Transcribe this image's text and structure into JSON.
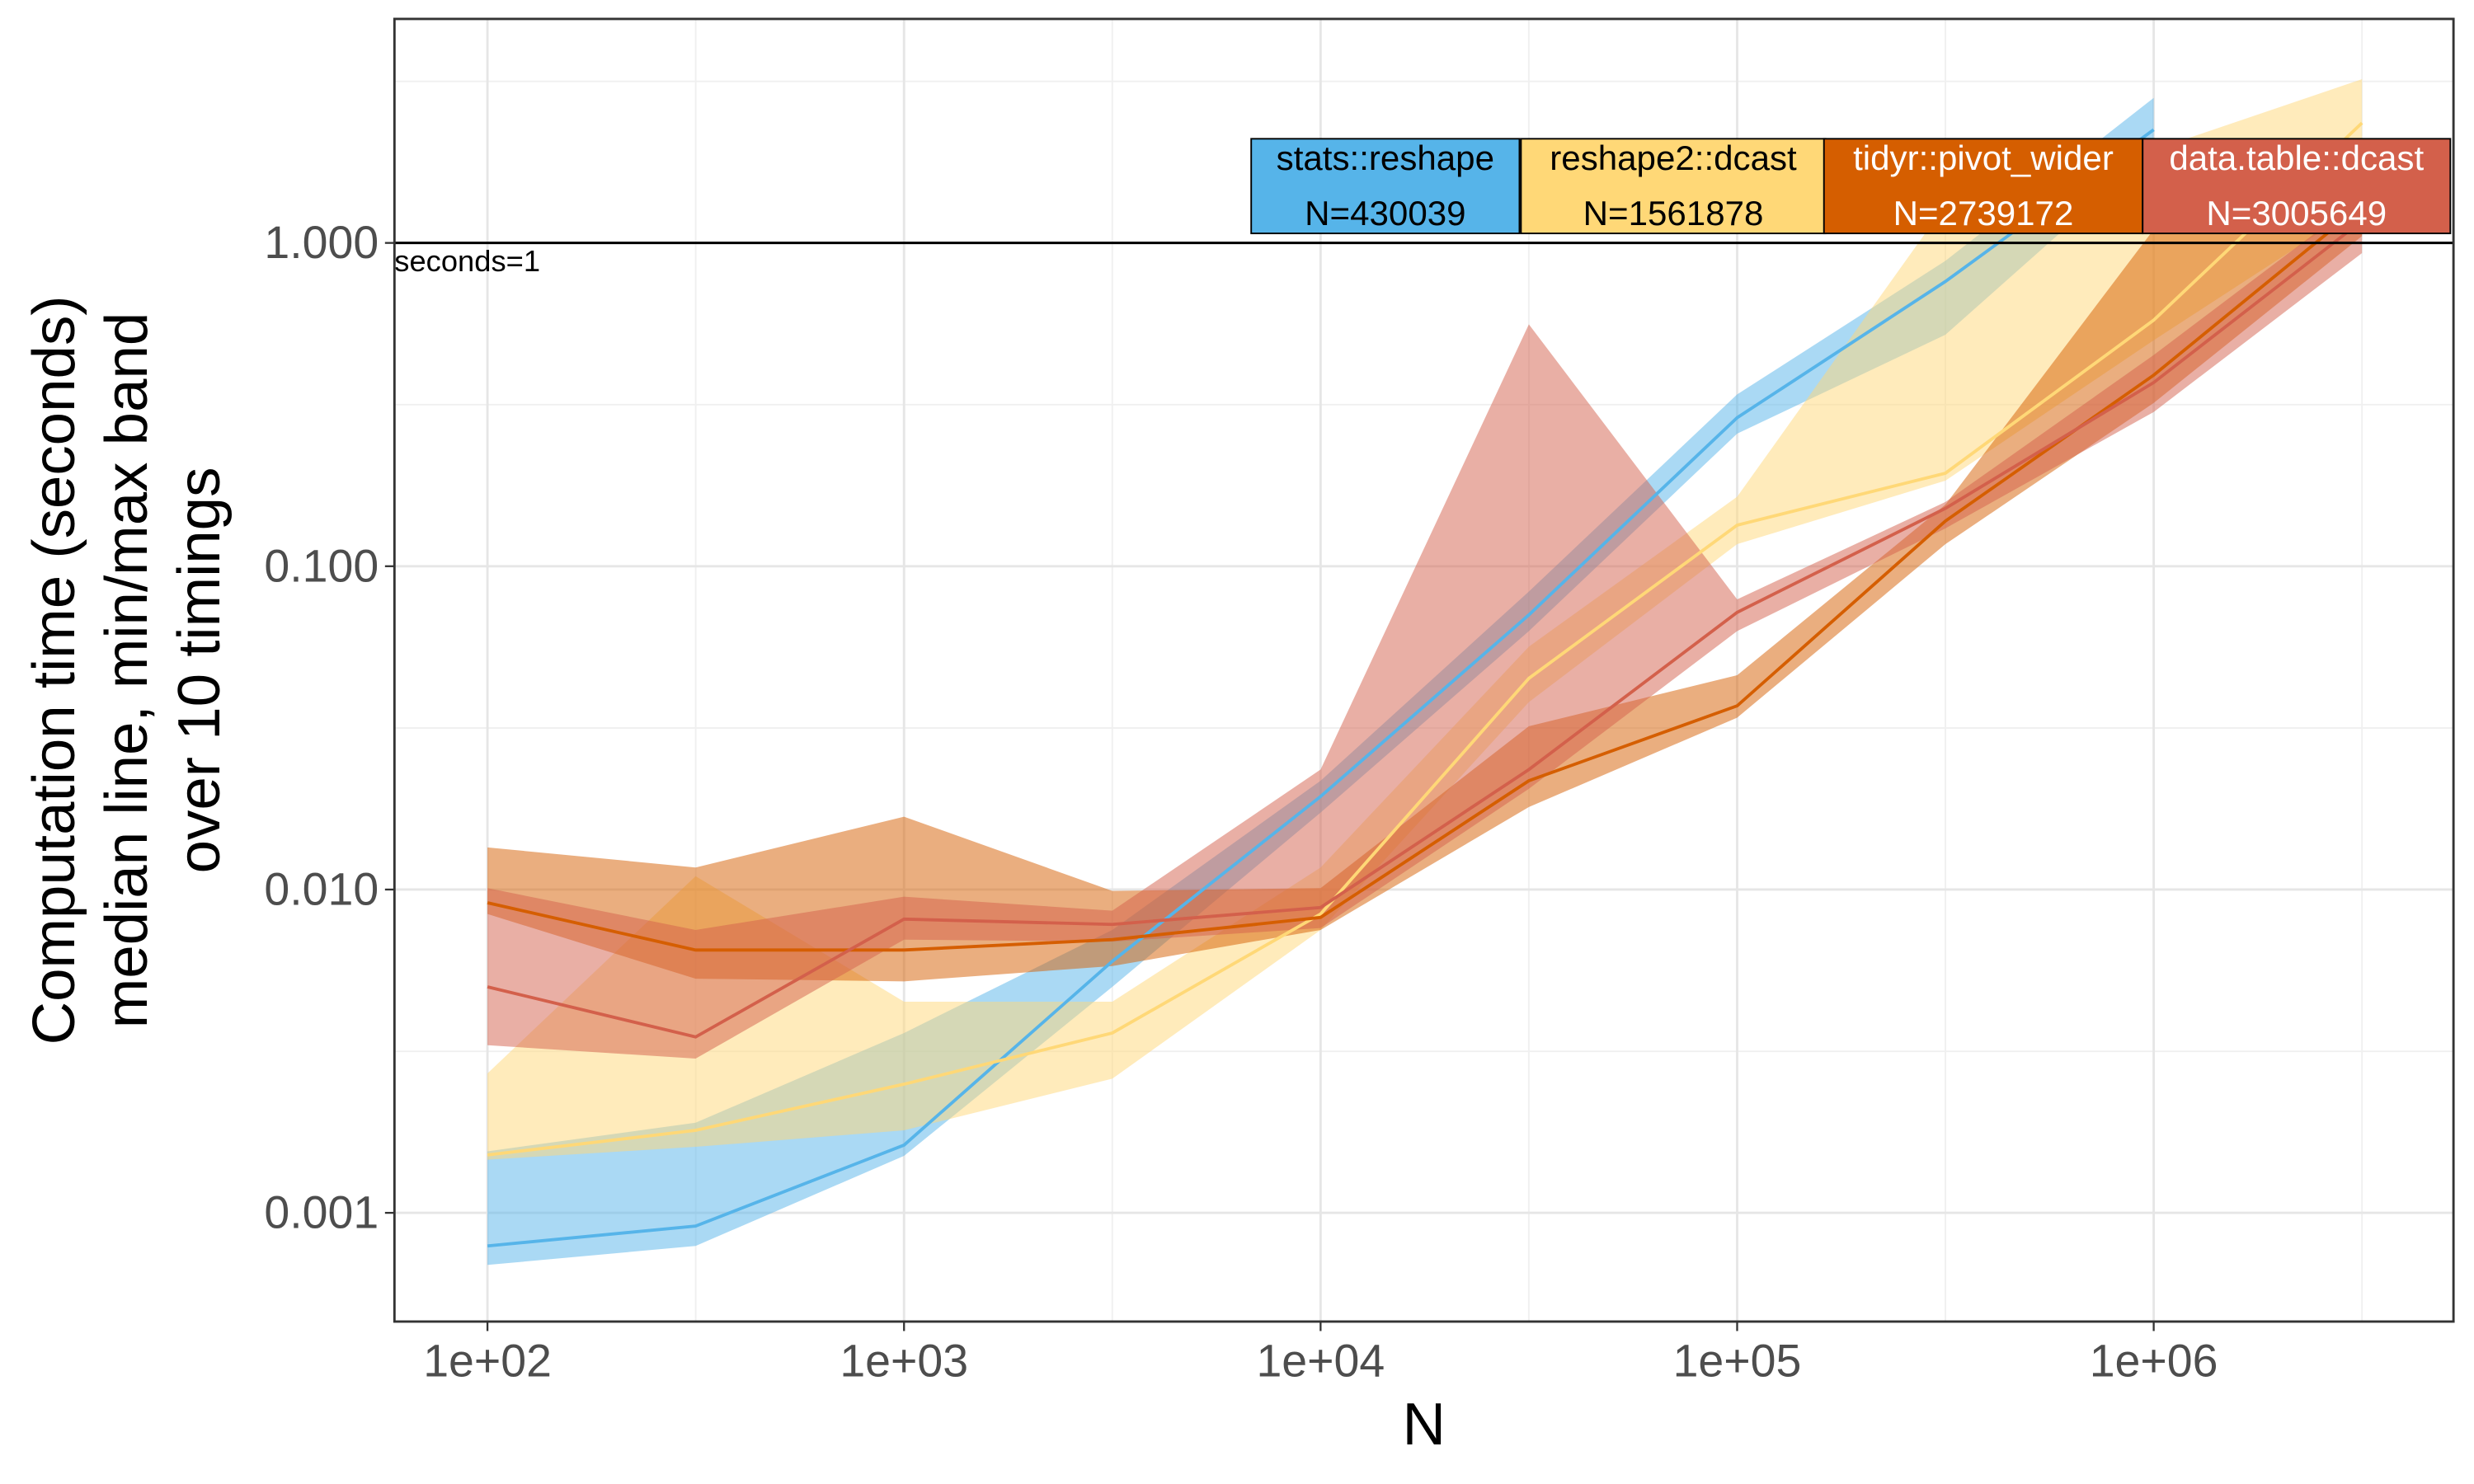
{
  "chart_data": {
    "type": "line",
    "xlabel": "N",
    "ylabel_lines": [
      "Computation time (seconds)",
      "median line, min/max band",
      "over 10 timings"
    ],
    "log_x": true,
    "log_y": true,
    "grid": true,
    "xlim": [
      59.8,
      5244000
    ],
    "ylim": [
      0.000461,
      4.93
    ],
    "xticks": [
      {
        "value": 100,
        "label": "1e+02"
      },
      {
        "value": 1000,
        "label": "1e+03"
      },
      {
        "value": 10000,
        "label": "1e+04"
      },
      {
        "value": 100000,
        "label": "1e+05"
      },
      {
        "value": 1000000,
        "label": "1e+06"
      }
    ],
    "yticks": [
      {
        "value": 0.001,
        "label": "0.001"
      },
      {
        "value": 0.01,
        "label": "0.010"
      },
      {
        "value": 0.1,
        "label": "0.100"
      },
      {
        "value": 1,
        "label": "1.000"
      }
    ],
    "x_minor_grid": [
      316.2,
      3162,
      31623,
      316228,
      3162278
    ],
    "y_minor_grid": [
      0.00316,
      0.0316,
      0.316,
      3.16
    ],
    "reference_line": {
      "value": 1,
      "label": "seconds=1"
    },
    "x": [
      100,
      316,
      1000,
      3162,
      10000,
      31623,
      100000,
      316228,
      1000000,
      3162278
    ],
    "series": [
      {
        "name": "stats::reshape",
        "label": "N=430039",
        "color": "#56B4E9",
        "values": [
          0.00079,
          0.00091,
          0.00162,
          0.006,
          0.0194,
          0.0707,
          0.288,
          0.76,
          2.24,
          null
        ],
        "min": [
          0.00069,
          0.00079,
          0.0015,
          0.005,
          0.0173,
          0.063,
          0.257,
          0.52,
          1.94,
          null
        ],
        "max": [
          0.00155,
          0.0019,
          0.0036,
          0.0075,
          0.0217,
          0.0835,
          0.34,
          0.88,
          2.81,
          null
        ]
      },
      {
        "name": "reshape2::dcast",
        "label": "N=1561878",
        "color": "#FFD877",
        "values": [
          0.00151,
          0.0018,
          0.0025,
          0.0036,
          0.0084,
          0.045,
          0.134,
          0.194,
          0.577,
          2.35
        ],
        "min": [
          0.00146,
          0.0016,
          0.0018,
          0.0026,
          0.0075,
          0.038,
          0.117,
          0.184,
          0.5,
          1.31
        ],
        "max": [
          0.0027,
          0.011,
          0.0045,
          0.0045,
          0.0117,
          0.0564,
          0.164,
          1.31,
          1.94,
          3.21
        ]
      },
      {
        "name": "tidyr::pivot_wider",
        "label": "N=2739172",
        "color": "#D55E00",
        "values": [
          0.0091,
          0.0065,
          0.0065,
          0.007,
          0.0082,
          0.0217,
          0.037,
          0.138,
          0.39,
          1.31
        ],
        "min": [
          0.0084,
          0.0053,
          0.0052,
          0.0058,
          0.0075,
          0.018,
          0.034,
          0.117,
          0.32,
          1.05
        ],
        "max": [
          0.0135,
          0.0117,
          0.0168,
          0.0099,
          0.0101,
          0.032,
          0.046,
          0.155,
          1.1,
          1.64
        ]
      },
      {
        "name": "data.table::dcast",
        "label": "N=3005649",
        "color": "#D3604B",
        "values": [
          0.005,
          0.0035,
          0.0081,
          0.0078,
          0.0088,
          0.0235,
          0.072,
          0.151,
          0.37,
          1.17
        ],
        "min": [
          0.0033,
          0.003,
          0.007,
          0.0069,
          0.0076,
          0.0205,
          0.063,
          0.131,
          0.3,
          0.93
        ],
        "max": [
          0.0101,
          0.0075,
          0.0095,
          0.0086,
          0.0235,
          0.56,
          0.079,
          0.158,
          0.45,
          1.38
        ]
      }
    ]
  }
}
